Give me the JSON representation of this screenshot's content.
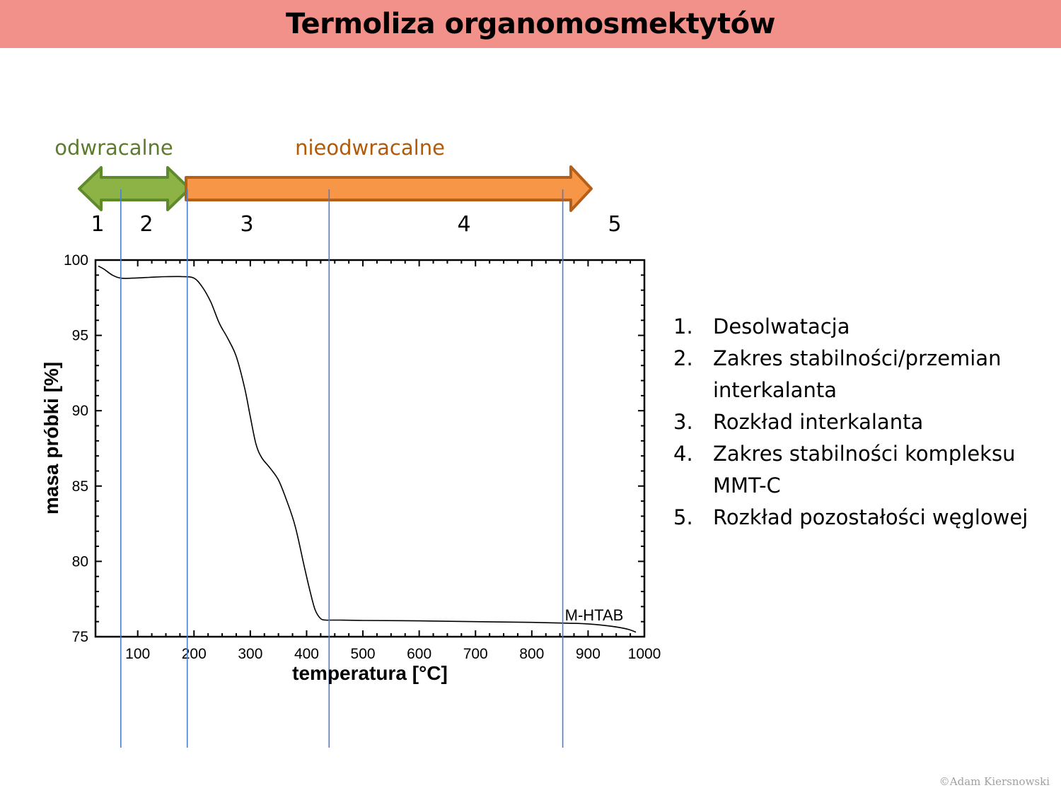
{
  "slide": {
    "title": "Termoliza organomosmektytów",
    "copyright": "©Adam Kiersnowski"
  },
  "zones": {
    "reversible_label": "odwracalne",
    "irreversible_label": "nieodwracalne",
    "reversible_color": "#8db347",
    "irreversible_color": "#f79646",
    "reversible_text_color": "#5d7b2e",
    "irreversible_text_color": "#b35a09",
    "stage_numbers": [
      "1",
      "2",
      "3",
      "4",
      "5"
    ]
  },
  "stages": [
    {
      "num": "1.",
      "text": "Desolwatacja"
    },
    {
      "num": "2.",
      "text": "Zakres stabilności/przemian interkalanta"
    },
    {
      "num": "3.",
      "text": "Rozkład interkalanta"
    },
    {
      "num": "4.",
      "text": "Zakres stabilności kompleksu MMT-C"
    },
    {
      "num": "5.",
      "text": "Rozkład pozostałości węglowej"
    }
  ],
  "chart_data": {
    "type": "line",
    "title": "",
    "xlabel": "temperatura [°C]",
    "ylabel": "masa próbki [%]",
    "xlim": [
      25,
      1000
    ],
    "ylim": [
      75,
      100
    ],
    "xticks": [
      100,
      200,
      300,
      400,
      500,
      600,
      700,
      800,
      900,
      1000
    ],
    "yticks": [
      75,
      80,
      85,
      90,
      95,
      100
    ],
    "boundary_lines_x": [
      70,
      188,
      440,
      855
    ],
    "boundary_line_color": "#4a7fd0",
    "series": [
      {
        "name": "M-HTAB",
        "color": "#000000",
        "x": [
          30,
          40,
          55,
          70,
          90,
          120,
          150,
          180,
          200,
          215,
          230,
          245,
          260,
          275,
          290,
          300,
          310,
          320,
          335,
          350,
          365,
          380,
          395,
          405,
          415,
          425,
          435,
          440,
          460,
          500,
          600,
          700,
          800,
          860,
          900,
          940,
          970,
          985
        ],
        "y": [
          99.6,
          99.4,
          99.0,
          98.8,
          98.8,
          98.85,
          98.9,
          98.9,
          98.8,
          98.2,
          97.2,
          95.8,
          94.8,
          93.6,
          91.5,
          89.6,
          87.8,
          86.9,
          86.2,
          85.4,
          84.0,
          82.3,
          79.8,
          78.2,
          76.8,
          76.2,
          76.1,
          76.1,
          76.1,
          76.08,
          76.05,
          76.0,
          75.95,
          75.9,
          75.85,
          75.7,
          75.5,
          75.3
        ]
      }
    ]
  }
}
